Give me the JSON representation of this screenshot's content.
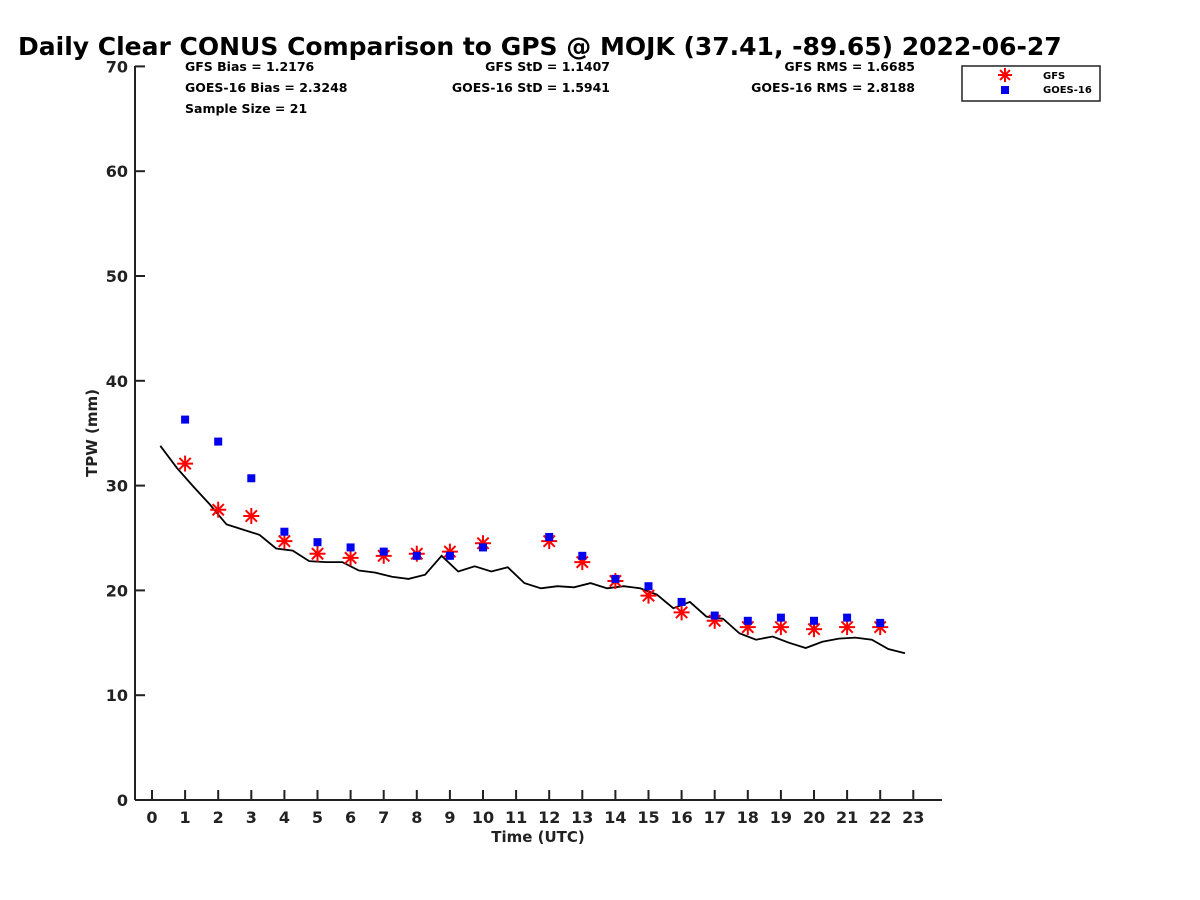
{
  "chart_data": {
    "type": "scatter",
    "title": "Daily Clear CONUS Comparison to GPS @ MOJK (37.41, -89.65) 2022-06-27",
    "xlabel": "Time (UTC)",
    "ylabel": "TPW (mm)",
    "xlim": [
      -0.5,
      23.8
    ],
    "ylim": [
      0,
      70
    ],
    "xticks": [
      "0",
      "1",
      "2",
      "3",
      "4",
      "5",
      "6",
      "7",
      "8",
      "9",
      "10",
      "11",
      "12",
      "13",
      "14",
      "15",
      "16",
      "17",
      "18",
      "19",
      "20",
      "21",
      "22",
      "23"
    ],
    "yticks": [
      "0",
      "10",
      "20",
      "30",
      "40",
      "50",
      "60",
      "70"
    ],
    "grid": false,
    "legend_position": "top-right",
    "stats": {
      "gfs_bias": "GFS Bias = 1.2176",
      "goes_bias": "GOES-16 Bias = 2.3248",
      "sample_size": "Sample Size = 21",
      "gfs_std": "GFS StD = 1.1407",
      "goes_std": "GOES-16 StD = 1.5941",
      "gfs_rms": "GFS RMS = 1.6685",
      "goes_rms": "GOES-16 RMS = 2.8188"
    },
    "series": [
      {
        "name": "GFS",
        "marker": "asterisk",
        "color": "#ff0000",
        "x": [
          1,
          2,
          3,
          4,
          5,
          6,
          7,
          8,
          9,
          10,
          12,
          13,
          14,
          15,
          16,
          17,
          18,
          19,
          20,
          21,
          22
        ],
        "y": [
          32.1,
          27.7,
          27.1,
          24.7,
          23.5,
          23.1,
          23.3,
          23.5,
          23.7,
          24.5,
          24.7,
          22.7,
          20.9,
          19.5,
          17.9,
          17.1,
          16.5,
          16.5,
          16.3,
          16.5,
          16.5
        ]
      },
      {
        "name": "GOES-16",
        "marker": "square",
        "color": "#0000ee",
        "x": [
          1,
          2,
          3,
          4,
          5,
          6,
          7,
          8,
          9,
          10,
          12,
          13,
          14,
          15,
          16,
          17,
          18,
          19,
          20,
          21,
          22
        ],
        "y": [
          36.3,
          34.2,
          30.7,
          25.6,
          24.6,
          24.1,
          23.7,
          23.3,
          23.3,
          24.1,
          25.1,
          23.3,
          21.1,
          20.4,
          18.9,
          17.6,
          17.1,
          17.4,
          17.1,
          17.4,
          16.9
        ]
      },
      {
        "name": "GPS",
        "marker": "line",
        "color": "#000000",
        "x": [
          0.25,
          0.75,
          1.25,
          1.75,
          2.25,
          2.75,
          3.25,
          3.75,
          4.25,
          4.75,
          5.25,
          5.75,
          6.25,
          6.75,
          7.25,
          7.75,
          8.25,
          8.75,
          9.25,
          9.75,
          10.25,
          10.75,
          11.25,
          11.75,
          12.25,
          12.75,
          13.25,
          13.75,
          14.25,
          14.75,
          15.25,
          15.75,
          16.25,
          16.75,
          17.25,
          17.75,
          18.25,
          18.75,
          19.25,
          19.75,
          20.25,
          20.75,
          21.25,
          21.75,
          22.25,
          22.75
        ],
        "y": [
          33.8,
          31.7,
          29.9,
          28.2,
          26.3,
          25.8,
          25.3,
          24.0,
          23.8,
          22.8,
          22.7,
          22.7,
          21.9,
          21.7,
          21.3,
          21.1,
          21.5,
          23.3,
          21.8,
          22.3,
          21.8,
          22.2,
          20.7,
          20.2,
          20.4,
          20.3,
          20.7,
          20.2,
          20.4,
          20.2,
          19.6,
          18.3,
          18.9,
          17.5,
          17.3,
          15.9,
          15.3,
          15.6,
          15.0,
          14.5,
          15.1,
          15.4,
          15.5,
          15.3,
          14.4,
          14.0
        ]
      }
    ]
  }
}
